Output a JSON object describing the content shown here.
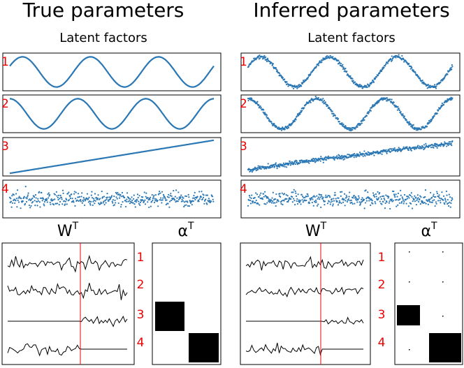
{
  "panels": [
    {
      "title": "True parameters",
      "subtitle": "Latent factors",
      "factor_labels": [
        "1",
        "2",
        "3",
        "4"
      ],
      "w_label": "W",
      "w_sup": "T",
      "alpha_label": "α",
      "alpha_sup": "T",
      "row_labels": [
        "1",
        "2",
        "3",
        "4"
      ]
    },
    {
      "title": "Inferred parameters",
      "subtitle": "Latent factors",
      "factor_labels": [
        "1",
        "2",
        "3",
        "4"
      ],
      "w_label": "W",
      "w_sup": "T",
      "alpha_label": "α",
      "alpha_sup": "T",
      "row_labels": [
        "1",
        "2",
        "3",
        "4"
      ]
    }
  ]
}
